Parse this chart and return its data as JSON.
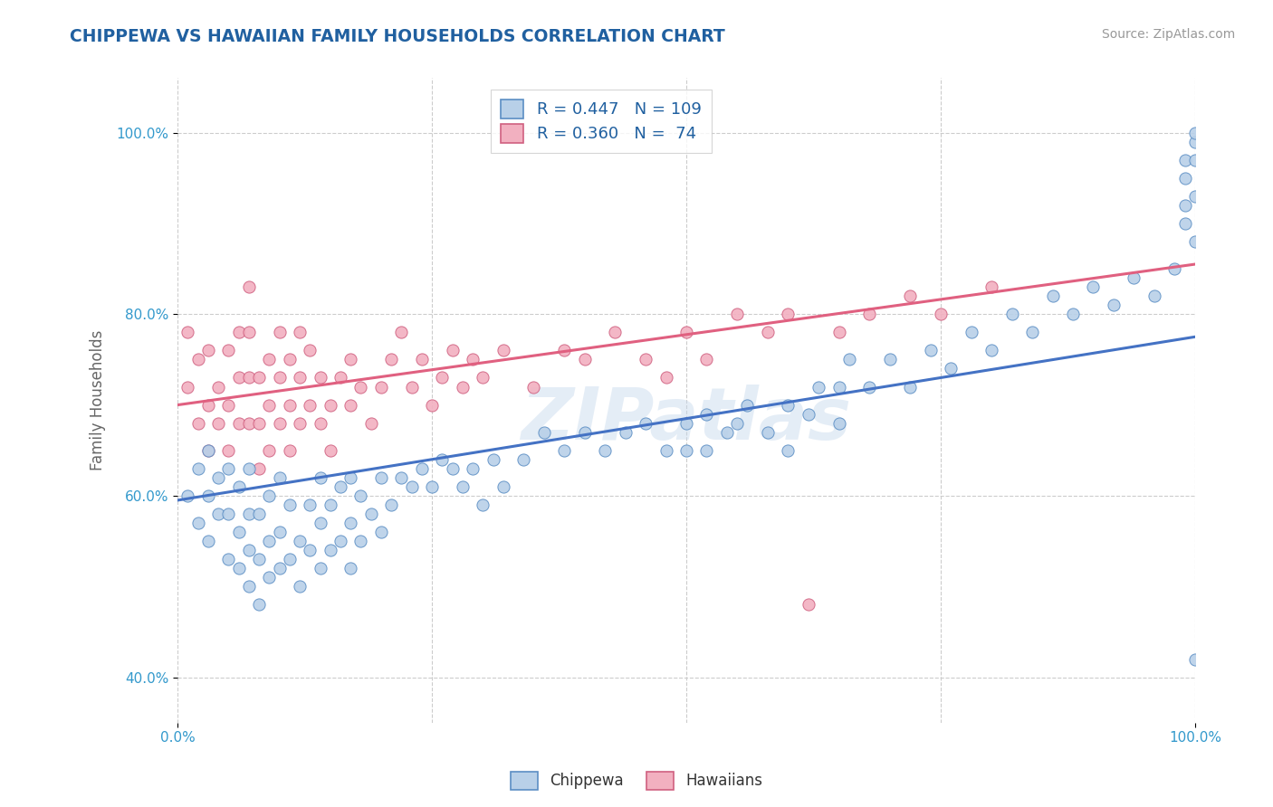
{
  "title": "CHIPPEWA VS HAWAIIAN FAMILY HOUSEHOLDS CORRELATION CHART",
  "source_text": "Source: ZipAtlas.com",
  "ylabel": "Family Households",
  "legend_labels": [
    "Chippewa",
    "Hawaiians"
  ],
  "legend_r": [
    "R = 0.447",
    "R = 0.360"
  ],
  "legend_n": [
    "N = 109",
    "N =  74"
  ],
  "chippewa_fill": "#b8d0e8",
  "chippewa_edge": "#5b8ec4",
  "hawaiian_fill": "#f2b0c0",
  "hawaiian_edge": "#d06080",
  "chippewa_line_color": "#4472c4",
  "hawaiian_line_color": "#e06080",
  "chippewa_scatter_x": [
    0.01,
    0.02,
    0.02,
    0.03,
    0.03,
    0.03,
    0.04,
    0.04,
    0.05,
    0.05,
    0.05,
    0.06,
    0.06,
    0.06,
    0.07,
    0.07,
    0.07,
    0.07,
    0.08,
    0.08,
    0.08,
    0.09,
    0.09,
    0.09,
    0.1,
    0.1,
    0.1,
    0.11,
    0.11,
    0.12,
    0.12,
    0.13,
    0.13,
    0.14,
    0.14,
    0.14,
    0.15,
    0.15,
    0.16,
    0.16,
    0.17,
    0.17,
    0.17,
    0.18,
    0.18,
    0.19,
    0.2,
    0.2,
    0.21,
    0.22,
    0.23,
    0.24,
    0.25,
    0.26,
    0.27,
    0.28,
    0.29,
    0.3,
    0.31,
    0.32,
    0.34,
    0.36,
    0.38,
    0.4,
    0.42,
    0.44,
    0.46,
    0.48,
    0.5,
    0.5,
    0.52,
    0.52,
    0.54,
    0.55,
    0.56,
    0.58,
    0.6,
    0.6,
    0.62,
    0.63,
    0.65,
    0.65,
    0.66,
    0.68,
    0.7,
    0.72,
    0.74,
    0.76,
    0.78,
    0.8,
    0.82,
    0.84,
    0.86,
    0.88,
    0.9,
    0.92,
    0.94,
    0.96,
    0.98,
    0.99,
    0.99,
    0.99,
    0.99,
    1.0,
    1.0,
    1.0,
    1.0,
    1.0,
    1.0
  ],
  "chippewa_scatter_y": [
    0.6,
    0.57,
    0.63,
    0.55,
    0.6,
    0.65,
    0.58,
    0.62,
    0.53,
    0.58,
    0.63,
    0.52,
    0.56,
    0.61,
    0.5,
    0.54,
    0.58,
    0.63,
    0.48,
    0.53,
    0.58,
    0.51,
    0.55,
    0.6,
    0.52,
    0.56,
    0.62,
    0.53,
    0.59,
    0.5,
    0.55,
    0.54,
    0.59,
    0.52,
    0.57,
    0.62,
    0.54,
    0.59,
    0.55,
    0.61,
    0.52,
    0.57,
    0.62,
    0.55,
    0.6,
    0.58,
    0.56,
    0.62,
    0.59,
    0.62,
    0.61,
    0.63,
    0.61,
    0.64,
    0.63,
    0.61,
    0.63,
    0.59,
    0.64,
    0.61,
    0.64,
    0.67,
    0.65,
    0.67,
    0.65,
    0.67,
    0.68,
    0.65,
    0.65,
    0.68,
    0.65,
    0.69,
    0.67,
    0.68,
    0.7,
    0.67,
    0.65,
    0.7,
    0.69,
    0.72,
    0.68,
    0.72,
    0.75,
    0.72,
    0.75,
    0.72,
    0.76,
    0.74,
    0.78,
    0.76,
    0.8,
    0.78,
    0.82,
    0.8,
    0.83,
    0.81,
    0.84,
    0.82,
    0.85,
    0.9,
    0.92,
    0.95,
    0.97,
    0.97,
    0.99,
    1.0,
    0.93,
    0.88,
    0.42
  ],
  "hawaiian_scatter_x": [
    0.01,
    0.01,
    0.02,
    0.02,
    0.03,
    0.03,
    0.03,
    0.04,
    0.04,
    0.05,
    0.05,
    0.05,
    0.06,
    0.06,
    0.06,
    0.07,
    0.07,
    0.07,
    0.07,
    0.08,
    0.08,
    0.08,
    0.09,
    0.09,
    0.09,
    0.1,
    0.1,
    0.1,
    0.11,
    0.11,
    0.11,
    0.12,
    0.12,
    0.12,
    0.13,
    0.13,
    0.14,
    0.14,
    0.15,
    0.15,
    0.16,
    0.17,
    0.17,
    0.18,
    0.19,
    0.2,
    0.21,
    0.22,
    0.23,
    0.24,
    0.25,
    0.26,
    0.27,
    0.28,
    0.29,
    0.3,
    0.32,
    0.35,
    0.38,
    0.4,
    0.43,
    0.46,
    0.48,
    0.5,
    0.52,
    0.55,
    0.58,
    0.6,
    0.62,
    0.65,
    0.68,
    0.72,
    0.75,
    0.8
  ],
  "hawaiian_scatter_y": [
    0.72,
    0.78,
    0.68,
    0.75,
    0.65,
    0.7,
    0.76,
    0.72,
    0.68,
    0.65,
    0.7,
    0.76,
    0.68,
    0.73,
    0.78,
    0.68,
    0.73,
    0.78,
    0.83,
    0.63,
    0.68,
    0.73,
    0.65,
    0.7,
    0.75,
    0.68,
    0.73,
    0.78,
    0.65,
    0.7,
    0.75,
    0.68,
    0.73,
    0.78,
    0.7,
    0.76,
    0.68,
    0.73,
    0.65,
    0.7,
    0.73,
    0.7,
    0.75,
    0.72,
    0.68,
    0.72,
    0.75,
    0.78,
    0.72,
    0.75,
    0.7,
    0.73,
    0.76,
    0.72,
    0.75,
    0.73,
    0.76,
    0.72,
    0.76,
    0.75,
    0.78,
    0.75,
    0.73,
    0.78,
    0.75,
    0.8,
    0.78,
    0.8,
    0.48,
    0.78,
    0.8,
    0.82,
    0.8,
    0.83
  ],
  "chippewa_trend_x": [
    0.0,
    1.0
  ],
  "chippewa_trend_y": [
    0.595,
    0.775
  ],
  "hawaiian_trend_x": [
    0.0,
    1.0
  ],
  "hawaiian_trend_y": [
    0.7,
    0.855
  ],
  "xlim": [
    0.0,
    1.0
  ],
  "ylim": [
    0.35,
    1.06
  ],
  "yticks": [
    0.4,
    0.6,
    0.8,
    1.0
  ],
  "ytick_labels": [
    "40.0%",
    "60.0%",
    "80.0%",
    "100.0%"
  ],
  "xticks": [
    0.0,
    1.0
  ],
  "xtick_labels": [
    "0.0%",
    "100.0%"
  ],
  "watermark": "ZIPatlas",
  "background_color": "#ffffff",
  "grid_color": "#cccccc",
  "title_color": "#2060a0",
  "source_color": "#999999",
  "axis_label_color": "#666666",
  "tick_color": "#3399cc"
}
